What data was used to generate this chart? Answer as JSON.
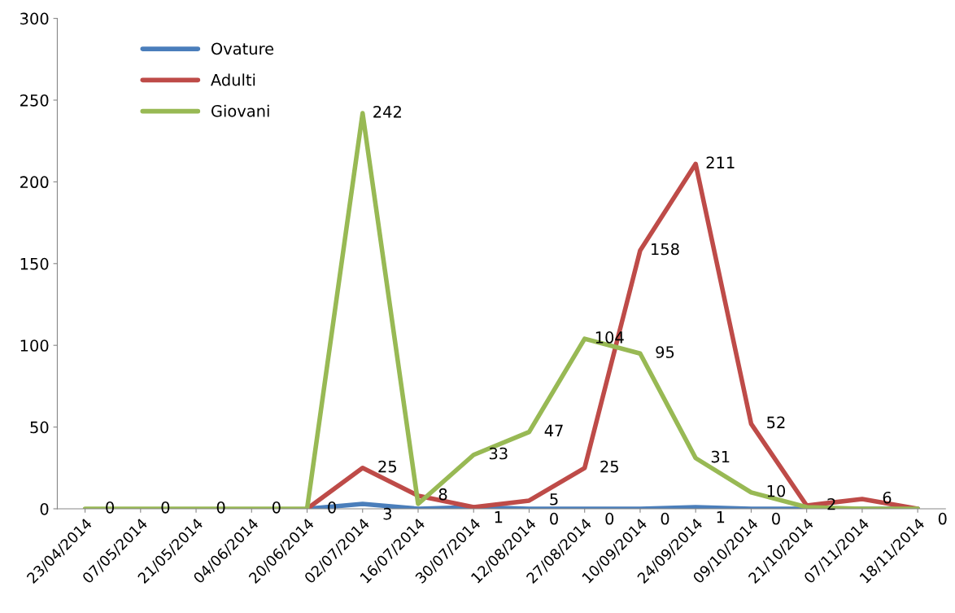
{
  "chart_data": {
    "type": "line",
    "categories": [
      "23/04/2014",
      "07/05/2014",
      "21/05/2014",
      "04/06/2014",
      "20/06/2014",
      "02/07/2014",
      "16/07/2014",
      "30/07/2014",
      "12/08/2014",
      "27/08/2014",
      "10/09/2014",
      "24/09/2014",
      "09/10/2014",
      "21/10/2014",
      "07/11/2014",
      "18/11/2014"
    ],
    "series": [
      {
        "name": "Ovature",
        "color": "#4a7ebb",
        "values": [
          null,
          null,
          null,
          null,
          0,
          3,
          0,
          1,
          0,
          0,
          0,
          1,
          0,
          0,
          0,
          0
        ],
        "value_labels": [
          null,
          null,
          null,
          null,
          null,
          "3",
          null,
          "1",
          "0",
          "0",
          "0",
          "1",
          "0",
          null,
          null,
          "0"
        ]
      },
      {
        "name": "Adulti",
        "color": "#be4b48",
        "values": [
          null,
          null,
          null,
          null,
          0,
          25,
          8,
          1,
          5,
          25,
          158,
          211,
          52,
          2,
          6,
          0
        ],
        "value_labels": [
          null,
          null,
          null,
          null,
          null,
          "25",
          "8",
          null,
          "5",
          "25",
          "158",
          "211",
          "52",
          "2",
          "6",
          null
        ]
      },
      {
        "name": "Giovani",
        "color": "#98b954",
        "values": [
          0,
          0,
          0,
          0,
          0,
          242,
          3,
          33,
          47,
          104,
          95,
          31,
          10,
          1,
          0,
          0
        ],
        "value_labels": [
          "0",
          "0",
          "0",
          "0",
          "0",
          "242",
          null,
          "33",
          "47",
          "104",
          "95",
          "31",
          "10",
          null,
          null,
          null
        ]
      }
    ],
    "ylim": [
      0,
      300
    ],
    "yticks": [
      0,
      50,
      100,
      150,
      200,
      250,
      300
    ],
    "legend": "top left",
    "grid": false,
    "marker": "none",
    "line_style": "solid"
  }
}
